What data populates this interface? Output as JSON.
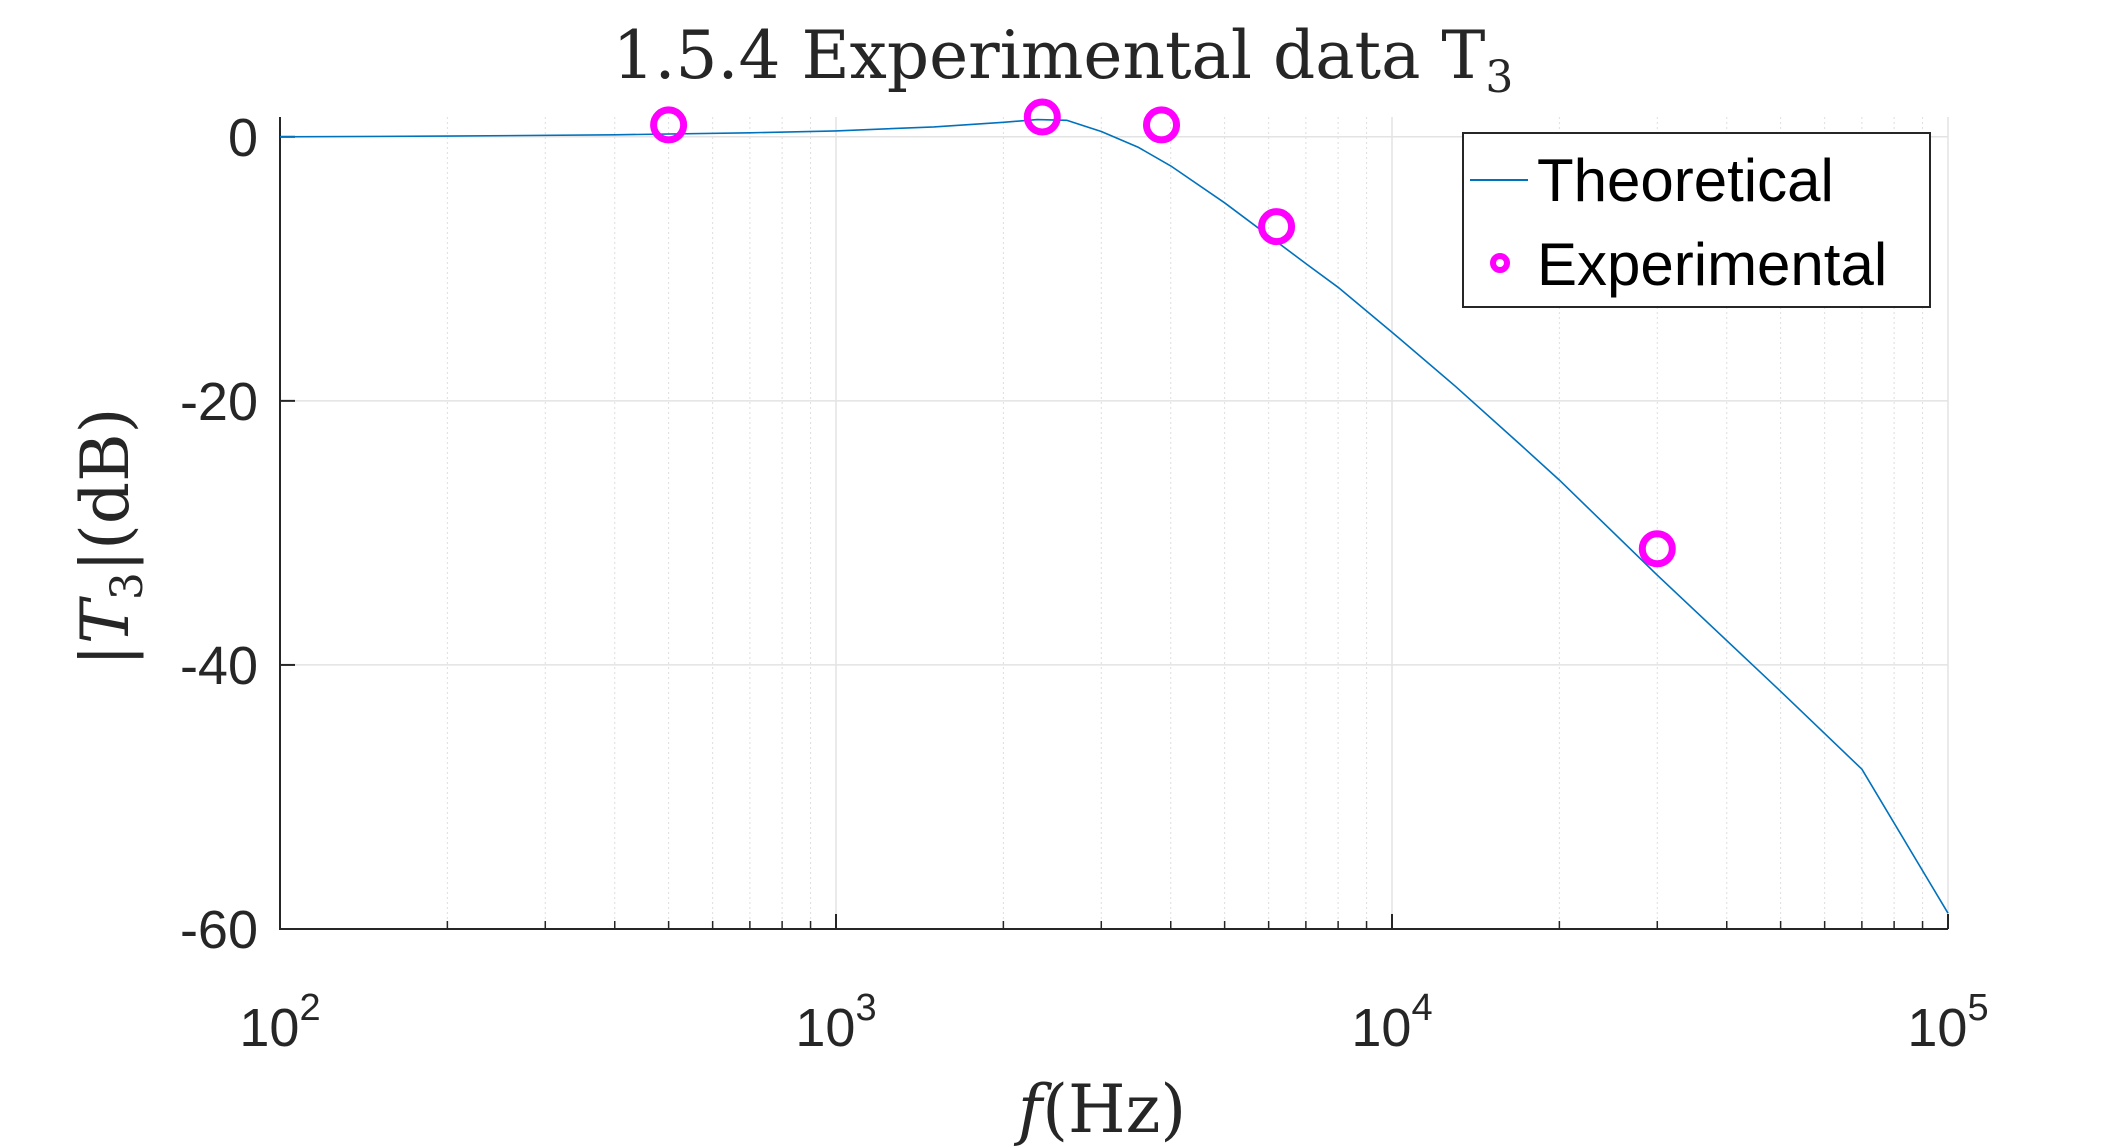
{
  "chart_data": {
    "type": "line",
    "title": {
      "main": "1.5.4 Experimental data T",
      "sub": "3"
    },
    "xlabel": {
      "var": "f",
      "rest": "(Hz)"
    },
    "ylabel": {
      "open": "|",
      "var": "T",
      "sub": "3",
      "rest": "|(dB)"
    },
    "x_scale": "log",
    "xlim": [
      100,
      100000
    ],
    "ylim": [
      -60,
      1.5
    ],
    "x_ticks": [
      {
        "value": 100,
        "base": "10",
        "exp": "2"
      },
      {
        "value": 1000,
        "base": "10",
        "exp": "3"
      },
      {
        "value": 10000,
        "base": "10",
        "exp": "4"
      },
      {
        "value": 100000,
        "base": "10",
        "exp": "5"
      }
    ],
    "y_ticks": [
      {
        "value": 0,
        "label": "0"
      },
      {
        "value": -20,
        "label": "-20"
      },
      {
        "value": -40,
        "label": "-40"
      },
      {
        "value": -60,
        "label": "-60"
      }
    ],
    "grid": true,
    "legend_position": "top-right",
    "series": [
      {
        "name": "Theoretical",
        "style": "line",
        "color": "#0072BD",
        "x": [
          100,
          200,
          400,
          700,
          1000,
          1500,
          2000,
          2300,
          2600,
          3000,
          3500,
          4000,
          5000,
          6000,
          7000,
          8000,
          10000,
          13000,
          17000,
          20000,
          30000,
          50000,
          70000,
          100000
        ],
        "y": [
          0,
          0.05,
          0.15,
          0.3,
          0.45,
          0.75,
          1.1,
          1.3,
          1.25,
          0.4,
          -0.8,
          -2.2,
          -5.0,
          -7.5,
          -9.6,
          -11.4,
          -14.8,
          -18.9,
          -23.3,
          -26.0,
          -33.2,
          -42.0,
          -47.9,
          -58.8
        ]
      },
      {
        "name": "Experimental",
        "style": "marker",
        "color": "#FF00FF",
        "x": [
          500,
          2350,
          3850,
          6200,
          30000
        ],
        "y": [
          0.9,
          1.5,
          0.9,
          -6.8,
          -31.2
        ]
      }
    ]
  }
}
